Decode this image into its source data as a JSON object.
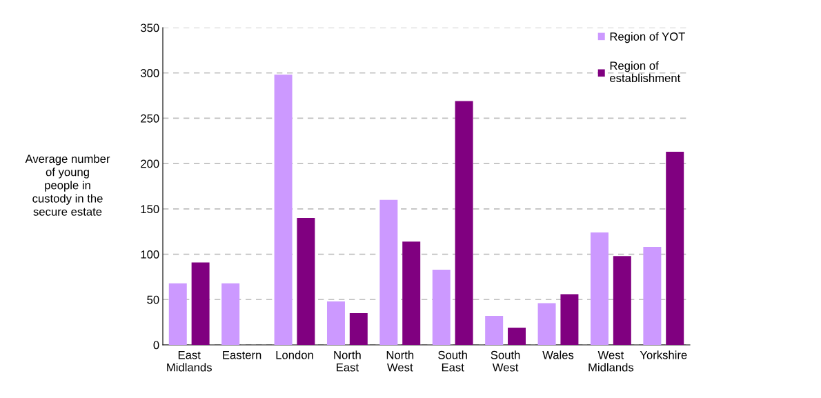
{
  "chart_data": {
    "type": "bar",
    "ylabel": "Average number\nof young\npeople in\ncustody in the\nsecure estate",
    "categories": [
      "East\nMidlands",
      "Eastern",
      "London",
      "North\nEast",
      "North\nWest",
      "South\nEast",
      "South\nWest",
      "Wales",
      "West\nMidlands",
      "Yorkshire"
    ],
    "series": [
      {
        "name": "Region of YOT",
        "color": "#cc99ff",
        "values": [
          68,
          68,
          298,
          48,
          160,
          83,
          32,
          46,
          124,
          108
        ]
      },
      {
        "name": "Region of\nestablishment",
        "color": "#800080",
        "values": [
          91,
          null,
          140,
          35,
          114,
          269,
          19,
          56,
          98,
          213
        ]
      }
    ],
    "ylim": [
      0,
      350
    ],
    "yticks": [
      0,
      50,
      100,
      150,
      200,
      250,
      300,
      350
    ],
    "grid": "y",
    "legend": "top right"
  }
}
